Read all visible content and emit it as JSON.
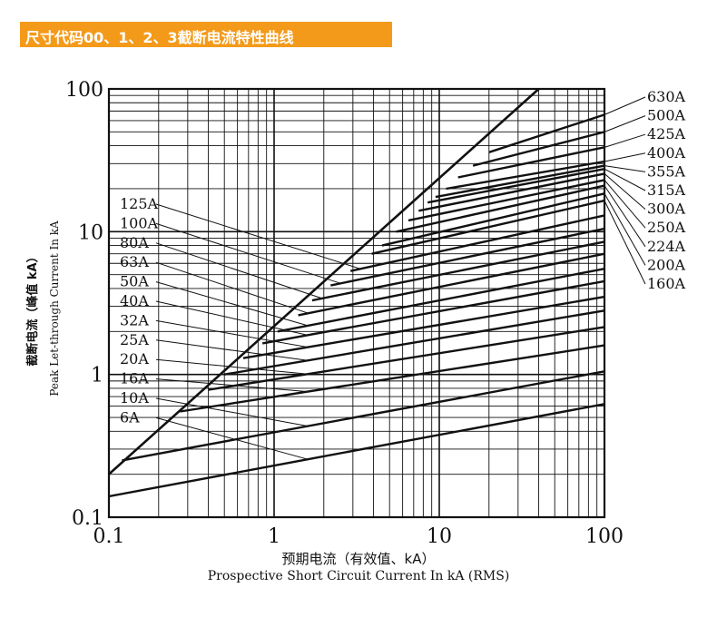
{
  "title": "尺寸代码00、1、2、3截断电流特性曲线",
  "colors": {
    "title_bg": "#f49a1a",
    "title_text": "#ffffff",
    "lines": "#111111"
  },
  "chart_data": {
    "type": "line",
    "scale": "log-log",
    "title": "尺寸代码00、1、2、3截断电流特性曲线",
    "xlabel_cn": "预期电流（有效值、kA）",
    "xlabel_en": "Prospective Short Circuit Current In kA (RMS)",
    "ylabel_cn": "截断电流（峰值 kA）",
    "ylabel_en": "Peak Let-through Current In kA",
    "xlim": [
      0.1,
      100
    ],
    "ylim": [
      0.1,
      100
    ],
    "x_ticks": [
      "0.1",
      "1",
      "10",
      "100"
    ],
    "y_ticks": [
      "0.1",
      "1",
      "10",
      "100"
    ],
    "grid": true,
    "left_ratings": [
      "125A",
      "100A",
      "80A",
      "63A",
      "50A",
      "40A",
      "32A",
      "25A",
      "20A",
      "16A",
      "10A",
      "6A"
    ],
    "right_ratings": [
      "630A",
      "500A",
      "425A",
      "400A",
      "355A",
      "315A",
      "300A",
      "250A",
      "224A",
      "200A",
      "160A"
    ],
    "max_peak_line": {
      "x": [
        0.1,
        40
      ],
      "y": [
        0.2,
        100
      ]
    },
    "series": [
      {
        "name": "6A",
        "x": [
          0.1,
          100
        ],
        "y": [
          0.14,
          0.62
        ]
      },
      {
        "name": "10A",
        "x": [
          0.12,
          100
        ],
        "y": [
          0.25,
          1.05
        ]
      },
      {
        "name": "16A",
        "x": [
          0.27,
          100
        ],
        "y": [
          0.55,
          1.6
        ]
      },
      {
        "name": "20A",
        "x": [
          0.4,
          100
        ],
        "y": [
          0.78,
          2.15
        ]
      },
      {
        "name": "25A",
        "x": [
          0.5,
          100
        ],
        "y": [
          1.0,
          2.8
        ]
      },
      {
        "name": "32A",
        "x": [
          0.65,
          100
        ],
        "y": [
          1.3,
          3.5
        ]
      },
      {
        "name": "40A",
        "x": [
          0.85,
          100
        ],
        "y": [
          1.65,
          4.5
        ]
      },
      {
        "name": "50A",
        "x": [
          1.05,
          100
        ],
        "y": [
          2.0,
          5.5
        ]
      },
      {
        "name": "63A",
        "x": [
          1.4,
          100
        ],
        "y": [
          2.6,
          7.0
        ]
      },
      {
        "name": "80A",
        "x": [
          1.7,
          100
        ],
        "y": [
          3.3,
          8.5
        ]
      },
      {
        "name": "100A",
        "x": [
          2.2,
          100
        ],
        "y": [
          4.2,
          10.5
        ]
      },
      {
        "name": "125A",
        "x": [
          2.9,
          100
        ],
        "y": [
          5.3,
          13.0
        ]
      },
      {
        "name": "160A",
        "x": [
          3.9,
          100
        ],
        "y": [
          7.0,
          16.5
        ]
      },
      {
        "name": "200A",
        "x": [
          4.5,
          100
        ],
        "y": [
          8.0,
          18.5
        ]
      },
      {
        "name": "224A",
        "x": [
          5.5,
          100
        ],
        "y": [
          10.0,
          21.0
        ]
      },
      {
        "name": "250A",
        "x": [
          6.5,
          100
        ],
        "y": [
          12.0,
          23.0
        ]
      },
      {
        "name": "300A",
        "x": [
          7.5,
          100
        ],
        "y": [
          14.0,
          25.5
        ]
      },
      {
        "name": "315A",
        "x": [
          8.5,
          100
        ],
        "y": [
          16.0,
          27.5
        ]
      },
      {
        "name": "355A",
        "x": [
          9.5,
          100
        ],
        "y": [
          17.5,
          29.0
        ]
      },
      {
        "name": "400A",
        "x": [
          11.0,
          100
        ],
        "y": [
          20.0,
          31.0
        ]
      },
      {
        "name": "425A",
        "x": [
          13.0,
          100
        ],
        "y": [
          24.0,
          39.0
        ]
      },
      {
        "name": "500A",
        "x": [
          16.0,
          100
        ],
        "y": [
          29.0,
          50.0
        ]
      },
      {
        "name": "630A",
        "x": [
          20.0,
          100
        ],
        "y": [
          36.0,
          66.0
        ]
      }
    ]
  }
}
